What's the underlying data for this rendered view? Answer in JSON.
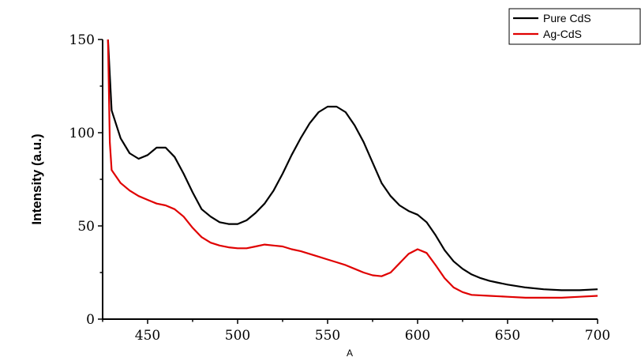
{
  "chart_data": {
    "type": "line",
    "title": "",
    "xlabel": "A",
    "ylabel": "Intensity (a.u.)",
    "xlim": [
      425,
      700
    ],
    "ylim": [
      0,
      150
    ],
    "x_ticks": [
      450,
      500,
      550,
      600,
      650,
      700
    ],
    "y_ticks": [
      0,
      50,
      100,
      150
    ],
    "grid": false,
    "legend_position": "top-right",
    "series": [
      {
        "name": "Pure CdS",
        "color": "#000000",
        "points": [
          [
            428,
            150
          ],
          [
            430,
            112
          ],
          [
            435,
            97
          ],
          [
            440,
            89
          ],
          [
            445,
            86
          ],
          [
            450,
            88
          ],
          [
            455,
            92
          ],
          [
            460,
            92
          ],
          [
            465,
            87
          ],
          [
            470,
            78
          ],
          [
            475,
            68
          ],
          [
            480,
            59
          ],
          [
            485,
            55
          ],
          [
            490,
            52
          ],
          [
            495,
            51
          ],
          [
            500,
            51
          ],
          [
            505,
            53
          ],
          [
            510,
            57
          ],
          [
            515,
            62
          ],
          [
            520,
            69
          ],
          [
            525,
            78
          ],
          [
            530,
            88
          ],
          [
            535,
            97
          ],
          [
            540,
            105
          ],
          [
            545,
            111
          ],
          [
            550,
            114
          ],
          [
            555,
            114
          ],
          [
            560,
            111
          ],
          [
            565,
            104
          ],
          [
            570,
            95
          ],
          [
            575,
            84
          ],
          [
            580,
            73
          ],
          [
            585,
            66
          ],
          [
            590,
            61
          ],
          [
            595,
            58
          ],
          [
            600,
            56
          ],
          [
            605,
            52
          ],
          [
            610,
            45
          ],
          [
            615,
            37
          ],
          [
            620,
            31
          ],
          [
            625,
            27
          ],
          [
            630,
            24
          ],
          [
            635,
            22
          ],
          [
            640,
            20.5
          ],
          [
            645,
            19.5
          ],
          [
            650,
            18.5
          ],
          [
            660,
            17
          ],
          [
            670,
            16
          ],
          [
            680,
            15.5
          ],
          [
            690,
            15.5
          ],
          [
            700,
            16
          ]
        ]
      },
      {
        "name": "Ag-CdS",
        "color": "#e00000",
        "points": [
          [
            428,
            150
          ],
          [
            429,
            95
          ],
          [
            430,
            80
          ],
          [
            435,
            73
          ],
          [
            440,
            69
          ],
          [
            445,
            66
          ],
          [
            450,
            64
          ],
          [
            455,
            62
          ],
          [
            460,
            61
          ],
          [
            465,
            59
          ],
          [
            470,
            55
          ],
          [
            475,
            49
          ],
          [
            480,
            44
          ],
          [
            485,
            41
          ],
          [
            490,
            39.5
          ],
          [
            495,
            38.5
          ],
          [
            500,
            38
          ],
          [
            505,
            38
          ],
          [
            510,
            39
          ],
          [
            515,
            40
          ],
          [
            520,
            39.5
          ],
          [
            525,
            39
          ],
          [
            530,
            37.5
          ],
          [
            535,
            36.5
          ],
          [
            540,
            35
          ],
          [
            545,
            33.5
          ],
          [
            550,
            32
          ],
          [
            555,
            30.5
          ],
          [
            560,
            29
          ],
          [
            565,
            27
          ],
          [
            570,
            25
          ],
          [
            575,
            23.5
          ],
          [
            580,
            23
          ],
          [
            585,
            25
          ],
          [
            590,
            30
          ],
          [
            595,
            35
          ],
          [
            600,
            37.5
          ],
          [
            605,
            35.5
          ],
          [
            610,
            29
          ],
          [
            615,
            22
          ],
          [
            620,
            17
          ],
          [
            625,
            14.5
          ],
          [
            630,
            13
          ],
          [
            640,
            12.5
          ],
          [
            650,
            12
          ],
          [
            660,
            11.5
          ],
          [
            670,
            11.5
          ],
          [
            680,
            11.5
          ],
          [
            690,
            12
          ],
          [
            700,
            12.5
          ]
        ]
      }
    ]
  }
}
